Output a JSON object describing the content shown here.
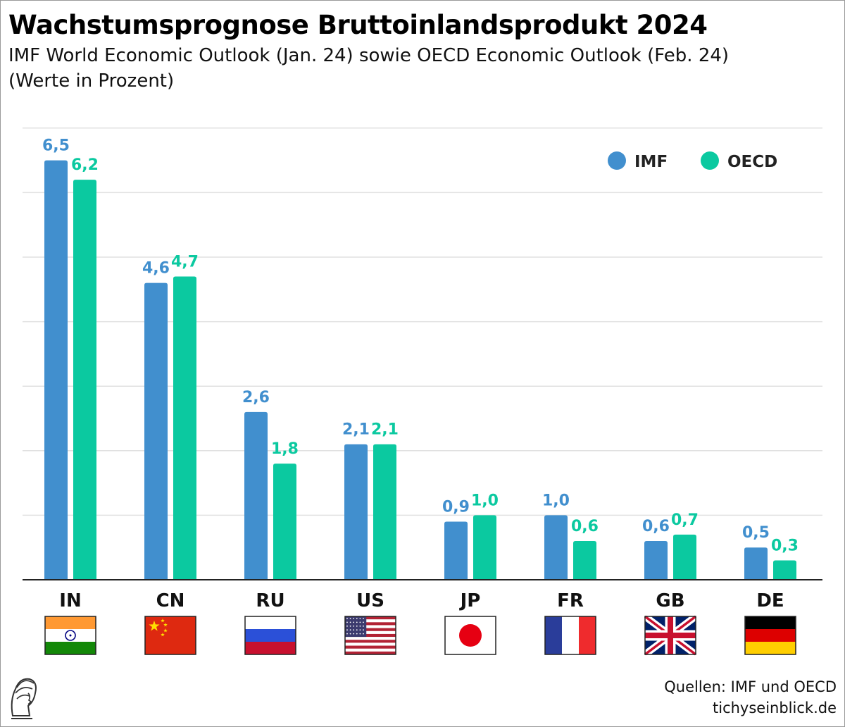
{
  "title": "Wachstumsprognose Bruttoinlandsprodukt 2024",
  "subtitle_line1": "IMF World Economic Outlook (Jan. 24) sowie OECD Economic Outlook (Feb. 24)",
  "subtitle_line2": "(Werte in Prozent)",
  "source_line1": "Quellen: IMF und OECD",
  "source_line2": "tichyseinblick.de",
  "colors": {
    "imf": "#418fce",
    "oecd": "#0bc9a0",
    "grid": "#e1e1e1",
    "axis": "#222222"
  },
  "flags": [
    "flag-india-icon",
    "flag-china-icon",
    "flag-russia-icon",
    "flag-usa-icon",
    "flag-japan-icon",
    "flag-france-icon",
    "flag-uk-icon",
    "flag-germany-icon"
  ],
  "chart_data": {
    "type": "bar",
    "title": "Wachstumsprognose Bruttoinlandsprodukt 2024",
    "categories": [
      "IN",
      "CN",
      "RU",
      "US",
      "JP",
      "FR",
      "GB",
      "DE"
    ],
    "series": [
      {
        "name": "IMF",
        "values": [
          6.5,
          4.6,
          2.6,
          2.1,
          0.9,
          1.0,
          0.6,
          0.5
        ],
        "labels": [
          "6,5",
          "4,6",
          "2,6",
          "2,1",
          "0,9",
          "1,0",
          "0,6",
          "0,5"
        ]
      },
      {
        "name": "OECD",
        "values": [
          6.2,
          4.7,
          1.8,
          2.1,
          1.0,
          0.6,
          0.7,
          0.3
        ],
        "labels": [
          "6,2",
          "4,7",
          "1,8",
          "2,1",
          "1,0",
          "0,6",
          "0,7",
          "0,3"
        ]
      }
    ],
    "ylim": [
      0,
      7
    ],
    "grid": true,
    "legend": "top-right"
  }
}
